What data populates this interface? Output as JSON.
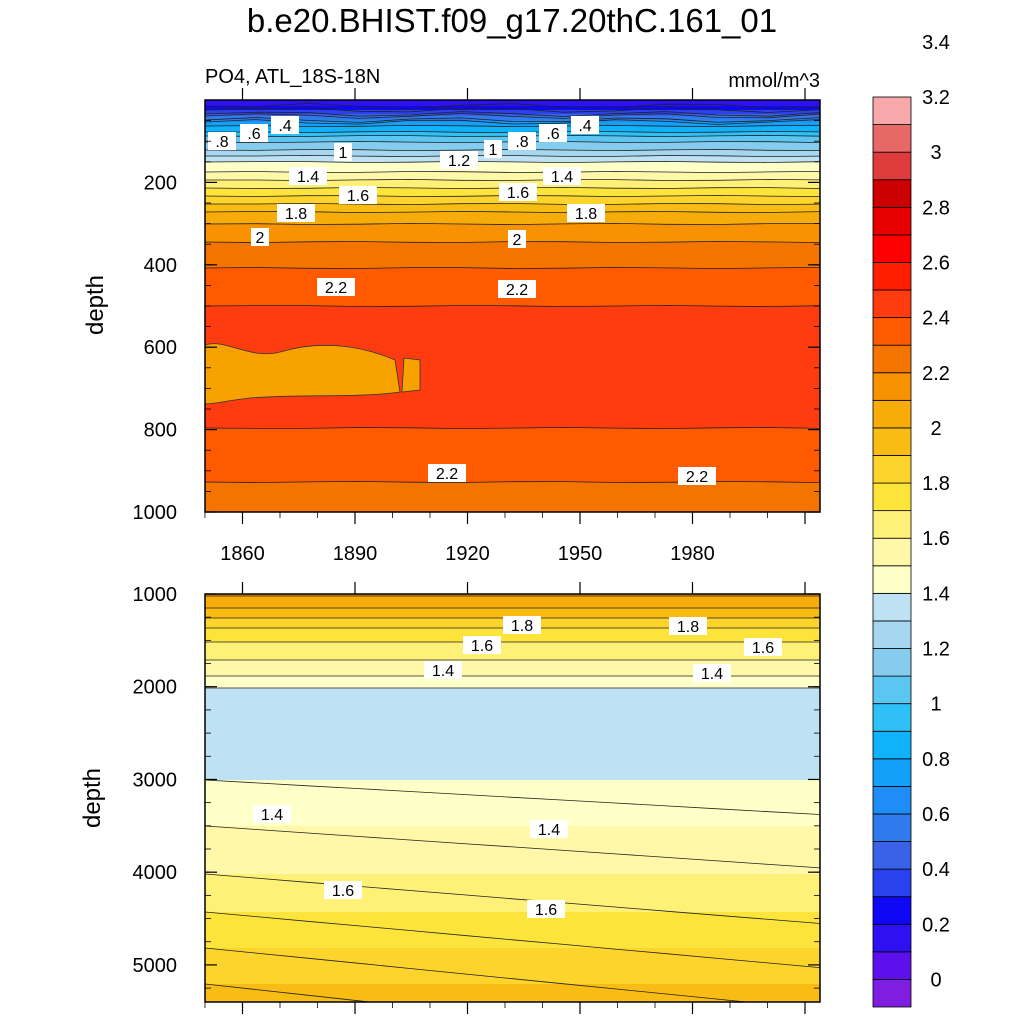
{
  "figure": {
    "title": "b.e20.BHIST.f09_g17.20thC.161_01",
    "left_subtitle": "PO4, ATL_18S-18N",
    "right_subtitle": "mmol/m^3"
  },
  "colorbar": {
    "labels": [
      "0",
      "0.2",
      "0.4",
      "0.6",
      "0.8",
      "1",
      "1.2",
      "1.4",
      "1.6",
      "1.8",
      "2",
      "2.2",
      "2.4",
      "2.6",
      "2.8",
      "3",
      "3.2",
      "3.4"
    ],
    "colors": [
      "#7f1ee0",
      "#5d10ec",
      "#2f10f2",
      "#0f08f4",
      "#2a42ee",
      "#3a62e6",
      "#2f7aec",
      "#1e8ef6",
      "#12a0fb",
      "#0fb2fb",
      "#2fc0f8",
      "#5cc6f2",
      "#86ccee",
      "#a6d6f0",
      "#bee2f4",
      "#ffffc8",
      "#fff8a8",
      "#fff078",
      "#fde43a",
      "#fcd42c",
      "#f9bc12",
      "#f8ac0a",
      "#f89200",
      "#f47400",
      "#ff5a00",
      "#ff3c10",
      "#ff1e00",
      "#ff0000",
      "#e80000",
      "#cc0000",
      "#de3c3c",
      "#e86868",
      "#f7a8aa"
    ]
  },
  "chart_data": [
    {
      "type": "contour",
      "panel": "upper",
      "title": "PO4, ATL_18S-18N",
      "units": "mmol/m^3",
      "xlabel": "",
      "ylabel": "depth",
      "xlim": [
        1850,
        2014
      ],
      "ylim": [
        1000,
        0
      ],
      "xticks": [
        "1860",
        "1890",
        "1920",
        "1950",
        "1980"
      ],
      "yticks": [
        "200",
        "400",
        "600",
        "800",
        "1000"
      ],
      "profile_depths": [
        0,
        30,
        60,
        100,
        150,
        200,
        240,
        280,
        340,
        420,
        500,
        700,
        850,
        1000
      ],
      "profile_values": [
        0.0,
        0.3,
        0.7,
        1.0,
        1.3,
        1.55,
        1.75,
        1.95,
        2.1,
        2.22,
        2.3,
        2.38,
        2.25,
        2.15
      ],
      "contour_labels": [
        ".8",
        ".6",
        ".4",
        "1",
        "1.4",
        "1.6",
        "1.8",
        "2",
        "2.2",
        "1.2",
        "1",
        ".8",
        ".6",
        ".4",
        "1.6",
        "1.4",
        "1.8",
        "2",
        "2.2",
        "2.2",
        "2.2"
      ]
    },
    {
      "type": "contour",
      "panel": "lower",
      "xlabel": "",
      "ylabel": "depth",
      "xlim": [
        1850,
        2014
      ],
      "ylim": [
        5400,
        1000
      ],
      "yticks": [
        "1000",
        "2000",
        "3000",
        "4000",
        "5000"
      ],
      "profile_depths": [
        1000,
        1200,
        1400,
        1600,
        1800,
        2000,
        2500,
        3000,
        3500,
        4000,
        4500,
        5000,
        5400
      ],
      "profile_values": [
        2.0,
        1.85,
        1.65,
        1.55,
        1.45,
        1.3,
        1.25,
        1.3,
        1.4,
        1.5,
        1.62,
        1.75,
        1.85
      ],
      "contour_labels": [
        "1.8",
        "1.8",
        "1.6",
        "1.6",
        "1.4",
        "1.4",
        "1.4",
        "1.4",
        "1.6",
        "1.6"
      ]
    }
  ]
}
